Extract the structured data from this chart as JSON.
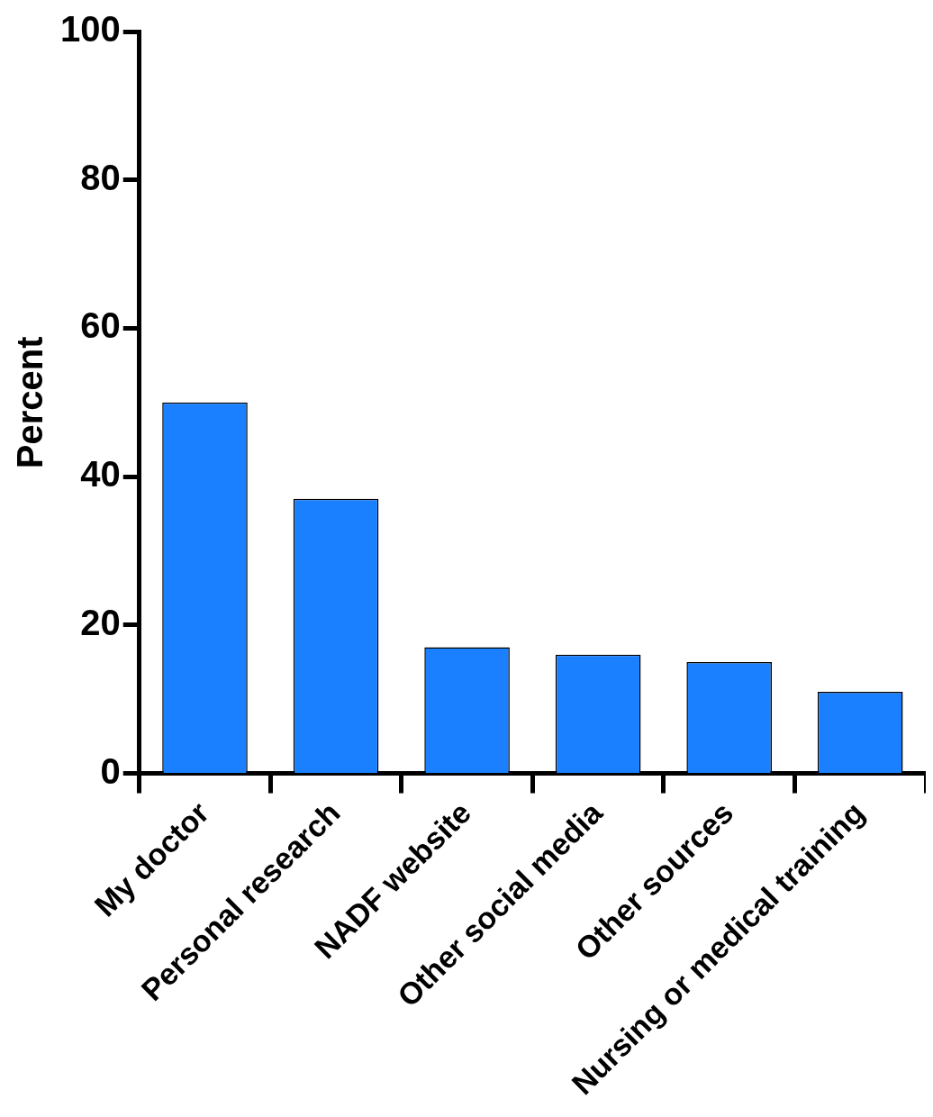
{
  "chart_data": {
    "type": "bar",
    "ylabel": "Percent",
    "categories": [
      "My doctor",
      "Personal research",
      "NADF website",
      "Other social media",
      "Other sources",
      "Nursing or medical training"
    ],
    "values": [
      50,
      37,
      17,
      16,
      15,
      11
    ],
    "color": "#1a80ff",
    "ylim": [
      0,
      100
    ],
    "yticks": [
      0,
      20,
      40,
      60,
      80,
      100
    ],
    "grid": false,
    "legend": false
  }
}
